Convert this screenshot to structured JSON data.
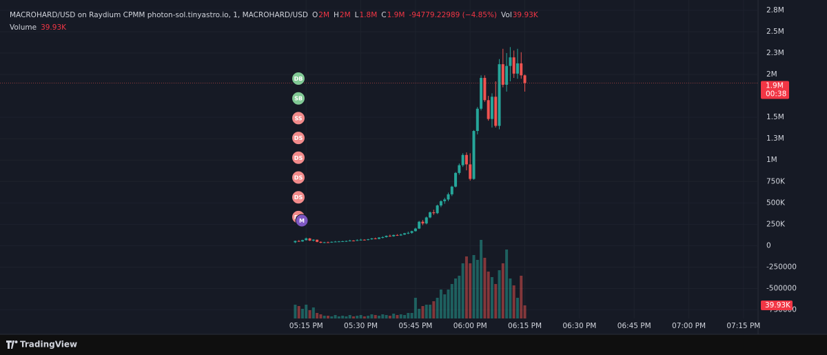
{
  "chart_data": {
    "type": "candlestick",
    "status_line": {
      "symbol": "MACROHARD/USD on Raydium CPMM photon-sol.tinyastro.io, 1, MACROHARD/USD",
      "items": [
        {
          "key": "O",
          "value": "2M"
        },
        {
          "key": "H",
          "value": "2M"
        },
        {
          "key": "L",
          "value": "1.8M"
        },
        {
          "key": "C",
          "value": "1.9M"
        }
      ],
      "change": "-94779.22989 (−4.85%)",
      "vol_key": "Vol",
      "vol_value": "39.93K"
    },
    "volume_title": "Volume",
    "volume_value": "39.93K",
    "x": [
      "05:12 PM",
      "05:13 PM",
      "05:14 PM",
      "05:15 PM",
      "05:16 PM",
      "05:17 PM",
      "05:18 PM",
      "05:19 PM",
      "05:20 PM",
      "05:21 PM",
      "05:22 PM",
      "05:23 PM",
      "05:24 PM",
      "05:25 PM",
      "05:26 PM",
      "05:27 PM",
      "05:28 PM",
      "05:29 PM",
      "05:30 PM",
      "05:31 PM",
      "05:32 PM",
      "05:33 PM",
      "05:34 PM",
      "05:35 PM",
      "05:36 PM",
      "05:37 PM",
      "05:38 PM",
      "05:39 PM",
      "05:40 PM",
      "05:41 PM",
      "05:42 PM",
      "05:43 PM",
      "05:44 PM",
      "05:45 PM",
      "05:46 PM",
      "05:47 PM",
      "05:48 PM",
      "05:49 PM",
      "05:50 PM",
      "05:51 PM",
      "05:52 PM",
      "05:53 PM",
      "05:54 PM",
      "05:55 PM",
      "05:56 PM",
      "05:57 PM",
      "05:58 PM",
      "05:59 PM",
      "06:00 PM",
      "06:01 PM",
      "06:02 PM",
      "06:03 PM",
      "06:04 PM",
      "06:05 PM",
      "06:06 PM",
      "06:07 PM",
      "06:08 PM",
      "06:09 PM",
      "06:10 PM",
      "06:11 PM",
      "06:12 PM",
      "06:13 PM",
      "06:14 PM",
      "06:15 PM"
    ],
    "open": [
      40000,
      55000,
      50000,
      65000,
      85000,
      60000,
      70000,
      45000,
      35000,
      40000,
      38000,
      45000,
      48000,
      50000,
      52000,
      55000,
      60000,
      58000,
      65000,
      70000,
      68000,
      75000,
      85000,
      80000,
      95000,
      100000,
      115000,
      110000,
      125000,
      120000,
      130000,
      145000,
      150000,
      170000,
      200000,
      280000,
      260000,
      330000,
      390000,
      380000,
      470000,
      520000,
      540000,
      600000,
      690000,
      850000,
      940000,
      1060000,
      950000,
      780000,
      1340000,
      1600000,
      1960000,
      1700000,
      1480000,
      1740000,
      1400000,
      2120000,
      1880000,
      2100000,
      2200000,
      2010000,
      2130000,
      1990000
    ],
    "high": [
      60000,
      65000,
      70000,
      95000,
      90000,
      75000,
      72000,
      50000,
      45000,
      48000,
      50000,
      55000,
      55000,
      58000,
      60000,
      70000,
      65000,
      75000,
      80000,
      75000,
      80000,
      90000,
      95000,
      100000,
      110000,
      120000,
      130000,
      130000,
      135000,
      140000,
      150000,
      165000,
      175000,
      210000,
      290000,
      300000,
      340000,
      400000,
      420000,
      480000,
      530000,
      560000,
      620000,
      700000,
      860000,
      960000,
      1080000,
      1090000,
      1080000,
      1350000,
      1620000,
      1990000,
      1990000,
      1750000,
      1780000,
      1920000,
      2180000,
      2300000,
      2250000,
      2320000,
      2280000,
      2300000,
      2260000,
      2000000
    ],
    "low": [
      30000,
      45000,
      45000,
      60000,
      55000,
      50000,
      40000,
      30000,
      30000,
      35000,
      35000,
      40000,
      42000,
      45000,
      45000,
      50000,
      50000,
      55000,
      60000,
      60000,
      62000,
      70000,
      75000,
      75000,
      85000,
      95000,
      105000,
      105000,
      115000,
      115000,
      125000,
      135000,
      140000,
      165000,
      195000,
      240000,
      250000,
      320000,
      360000,
      370000,
      450000,
      490000,
      520000,
      580000,
      680000,
      830000,
      920000,
      880000,
      760000,
      770000,
      1300000,
      1580000,
      1680000,
      1460000,
      1380000,
      1380000,
      1360000,
      1850000,
      1800000,
      1920000,
      1960000,
      1950000,
      1950000,
      1800000
    ],
    "close": [
      55000,
      50000,
      65000,
      85000,
      60000,
      70000,
      45000,
      35000,
      40000,
      38000,
      45000,
      48000,
      50000,
      52000,
      55000,
      60000,
      58000,
      65000,
      70000,
      68000,
      75000,
      85000,
      80000,
      95000,
      100000,
      115000,
      110000,
      125000,
      120000,
      130000,
      145000,
      150000,
      170000,
      200000,
      280000,
      260000,
      330000,
      390000,
      380000,
      470000,
      520000,
      540000,
      600000,
      690000,
      850000,
      940000,
      1060000,
      950000,
      780000,
      1340000,
      1600000,
      1960000,
      1700000,
      1480000,
      1740000,
      1400000,
      2120000,
      1880000,
      2100000,
      2200000,
      2010000,
      2130000,
      1990000,
      1900000
    ],
    "volume": [
      42000,
      37800,
      29400,
      42000,
      25200,
      33600,
      16800,
      12600,
      8400,
      8400,
      6300,
      10500,
      6300,
      8400,
      6300,
      10500,
      6300,
      8400,
      10500,
      6300,
      8400,
      12600,
      10500,
      8400,
      12600,
      10500,
      8400,
      14700,
      10500,
      12600,
      10500,
      16800,
      16800,
      63000,
      29400,
      37800,
      42000,
      42000,
      52500,
      63000,
      88200,
      73500,
      88200,
      105000,
      121800,
      130200,
      168000,
      189000,
      168000,
      193200,
      178500,
      239400,
      184800,
      142800,
      126000,
      105000,
      147000,
      168000,
      210000,
      121800,
      100800,
      63000,
      130200,
      39930
    ],
    "up_color": "#26a69a",
    "down_color": "#ef5350",
    "last_price_label": "1.9M",
    "countdown": "00:38",
    "ylim": [
      -850000,
      2870000
    ],
    "yticks": [
      {
        "value": 2750000,
        "label": "2.8M"
      },
      {
        "value": 2500000,
        "label": "2.5M"
      },
      {
        "value": 2250000,
        "label": "2.3M"
      },
      {
        "value": 2000000,
        "label": "2M"
      },
      {
        "value": 1500000,
        "label": "1.5M"
      },
      {
        "value": 1250000,
        "label": "1.3M"
      },
      {
        "value": 1000000,
        "label": "1M"
      },
      {
        "value": 750000,
        "label": "750K"
      },
      {
        "value": 500000,
        "label": "500K"
      },
      {
        "value": 250000,
        "label": "250K"
      },
      0,
      -250000,
      -500000,
      -750000
    ],
    "xlim": [
      "03:51 PM",
      "07:19 PM"
    ],
    "xticks": [
      "05:15 PM",
      "05:30 PM",
      "05:45 PM",
      "06:00 PM",
      "06:15 PM",
      "06:30 PM",
      "06:45 PM",
      "07:00 PM",
      "07:15 PM"
    ],
    "grid": true,
    "markers": [
      {
        "label": "DB",
        "color": "#81c995"
      },
      {
        "label": "SB",
        "color": "#81c995"
      },
      {
        "label": "SS",
        "color": "#f28b8b"
      },
      {
        "label": "DS",
        "color": "#f28b8b"
      },
      {
        "label": "DS",
        "color": "#f28b8b"
      },
      {
        "label": "DS",
        "color": "#f28b8b"
      },
      {
        "label": "DS",
        "color": "#f28b8b"
      },
      {
        "label": "DS",
        "color": "#f28b8b"
      },
      {
        "label": "M",
        "color": "#7e57c2"
      }
    ]
  },
  "footer": {
    "brand": "TradingView"
  }
}
